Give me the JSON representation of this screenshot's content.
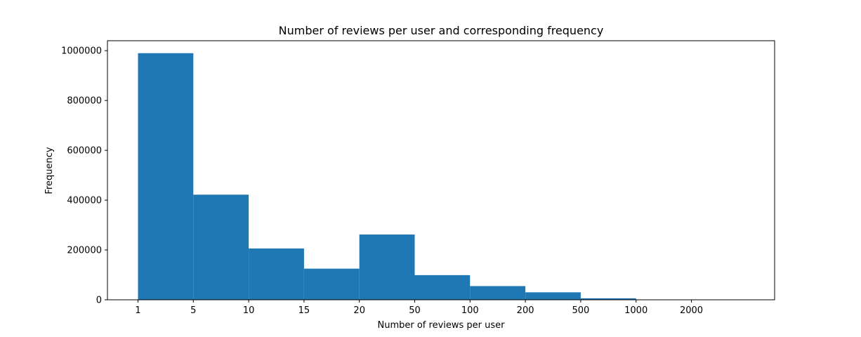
{
  "chart_data": {
    "type": "bar",
    "title": "Number of reviews per user and corresponding frequency",
    "xlabel": "Number of reviews per user",
    "ylabel": "Frequency",
    "x_tick_labels": [
      "1",
      "5",
      "10",
      "15",
      "20",
      "50",
      "100",
      "200",
      "500",
      "1000",
      "2000"
    ],
    "categories": [
      "1-5",
      "5-10",
      "10-15",
      "15-20",
      "20-50",
      "50-100",
      "100-200",
      "200-500",
      "500-1000",
      "1000-2000"
    ],
    "values": [
      990000,
      422000,
      206000,
      125000,
      262000,
      99000,
      55000,
      30000,
      6000,
      1000
    ],
    "ylim": [
      0,
      1040000
    ],
    "y_ticks": [
      0,
      200000,
      400000,
      600000,
      800000,
      1000000
    ],
    "y_tick_labels": [
      "0",
      "200000",
      "400000",
      "600000",
      "800000",
      "1000000"
    ],
    "bar_color": "#1f77b4",
    "grid": false,
    "legend": false
  }
}
